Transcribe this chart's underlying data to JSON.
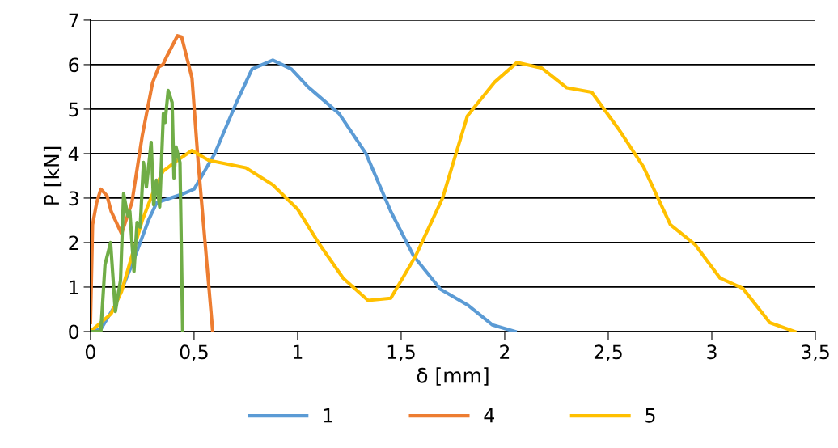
{
  "chart_data": {
    "type": "line",
    "xlabel": "δ [mm]",
    "ylabel": "P [kN]",
    "xlim": [
      0,
      3.5
    ],
    "xticks": [
      0,
      {
        "value": 0.5,
        "label": "0,5"
      },
      1,
      {
        "value": 1.5,
        "label": "1,5"
      },
      2,
      {
        "value": 2.5,
        "label": "2,5"
      },
      3,
      {
        "value": 3.5,
        "label": "3,5"
      }
    ],
    "ylim": [
      0,
      7
    ],
    "yticks": [
      0,
      1,
      2,
      3,
      4,
      5,
      6,
      7
    ],
    "grid": "y",
    "legend": "bottom",
    "marker": "none",
    "line_style": "solid",
    "series": [
      {
        "name": "1",
        "color": "#5b9bd5",
        "x": [
          0,
          0.05,
          0.12,
          0.2,
          0.28,
          0.32,
          0.45,
          0.5,
          0.6,
          0.7,
          0.78,
          0.88,
          0.97,
          1.05,
          1.2,
          1.33,
          1.45,
          1.56,
          1.69,
          1.82,
          1.94,
          2.05
        ],
        "values": [
          0,
          0.05,
          0.6,
          1.5,
          2.5,
          2.9,
          3.1,
          3.2,
          4,
          5.1,
          5.9,
          6.1,
          5.9,
          5.5,
          4.9,
          4.0,
          2.7,
          1.7,
          0.95,
          0.6,
          0.15,
          0
        ]
      },
      {
        "name": "4",
        "color": "#ed7d31",
        "x": [
          0,
          0.01,
          0.03,
          0.05,
          0.08,
          0.1,
          0.15,
          0.2,
          0.25,
          0.3,
          0.33,
          0.35,
          0.37,
          0.42,
          0.44,
          0.49,
          0.52,
          0.59
        ],
        "values": [
          0.2,
          2.4,
          2.9,
          3.2,
          3.05,
          2.7,
          2.2,
          2.9,
          4.4,
          5.6,
          5.95,
          6.0,
          6.2,
          6.65,
          6.62,
          5.7,
          3.8,
          0
        ]
      },
      {
        "name": "5",
        "color": "#ffc000",
        "x": [
          0,
          0.1,
          0.15,
          0.2,
          0.25,
          0.3,
          0.35,
          0.42,
          0.49,
          0.57,
          0.75,
          0.88,
          1.0,
          1.1,
          1.22,
          1.34,
          1.45,
          1.57,
          1.7,
          1.82,
          1.95,
          2.06,
          2.18,
          2.3,
          2.42,
          2.55,
          2.67,
          2.8,
          2.92,
          3.04,
          3.15,
          3.28,
          3.4
        ],
        "values": [
          0,
          0.4,
          0.9,
          1.7,
          2.5,
          3.1,
          3.6,
          3.85,
          4.07,
          3.85,
          3.68,
          3.3,
          2.75,
          2.0,
          1.2,
          0.7,
          0.75,
          1.7,
          3.0,
          4.85,
          5.6,
          6.05,
          5.92,
          5.48,
          5.38,
          4.55,
          3.7,
          2.4,
          1.95,
          1.2,
          0.97,
          0.2,
          0
        ]
      },
      {
        "color": "#70ad47",
        "x": [
          0,
          0.05,
          0.07,
          0.097,
          0.12,
          0.145,
          0.16,
          0.18,
          0.19,
          0.21,
          0.225,
          0.24,
          0.256,
          0.27,
          0.293,
          0.305,
          0.318,
          0.334,
          0.352,
          0.36,
          0.375,
          0.394,
          0.403,
          0.413,
          0.432,
          0.445
        ],
        "values": [
          0,
          0,
          1.5,
          2.0,
          0.45,
          1.15,
          3.1,
          2.6,
          2.7,
          1.35,
          2.45,
          2.35,
          3.8,
          3.25,
          4.25,
          2.85,
          3.4,
          2.8,
          4.9,
          4.7,
          5.42,
          5.15,
          3.45,
          4.15,
          3.8,
          0
        ]
      }
    ]
  }
}
